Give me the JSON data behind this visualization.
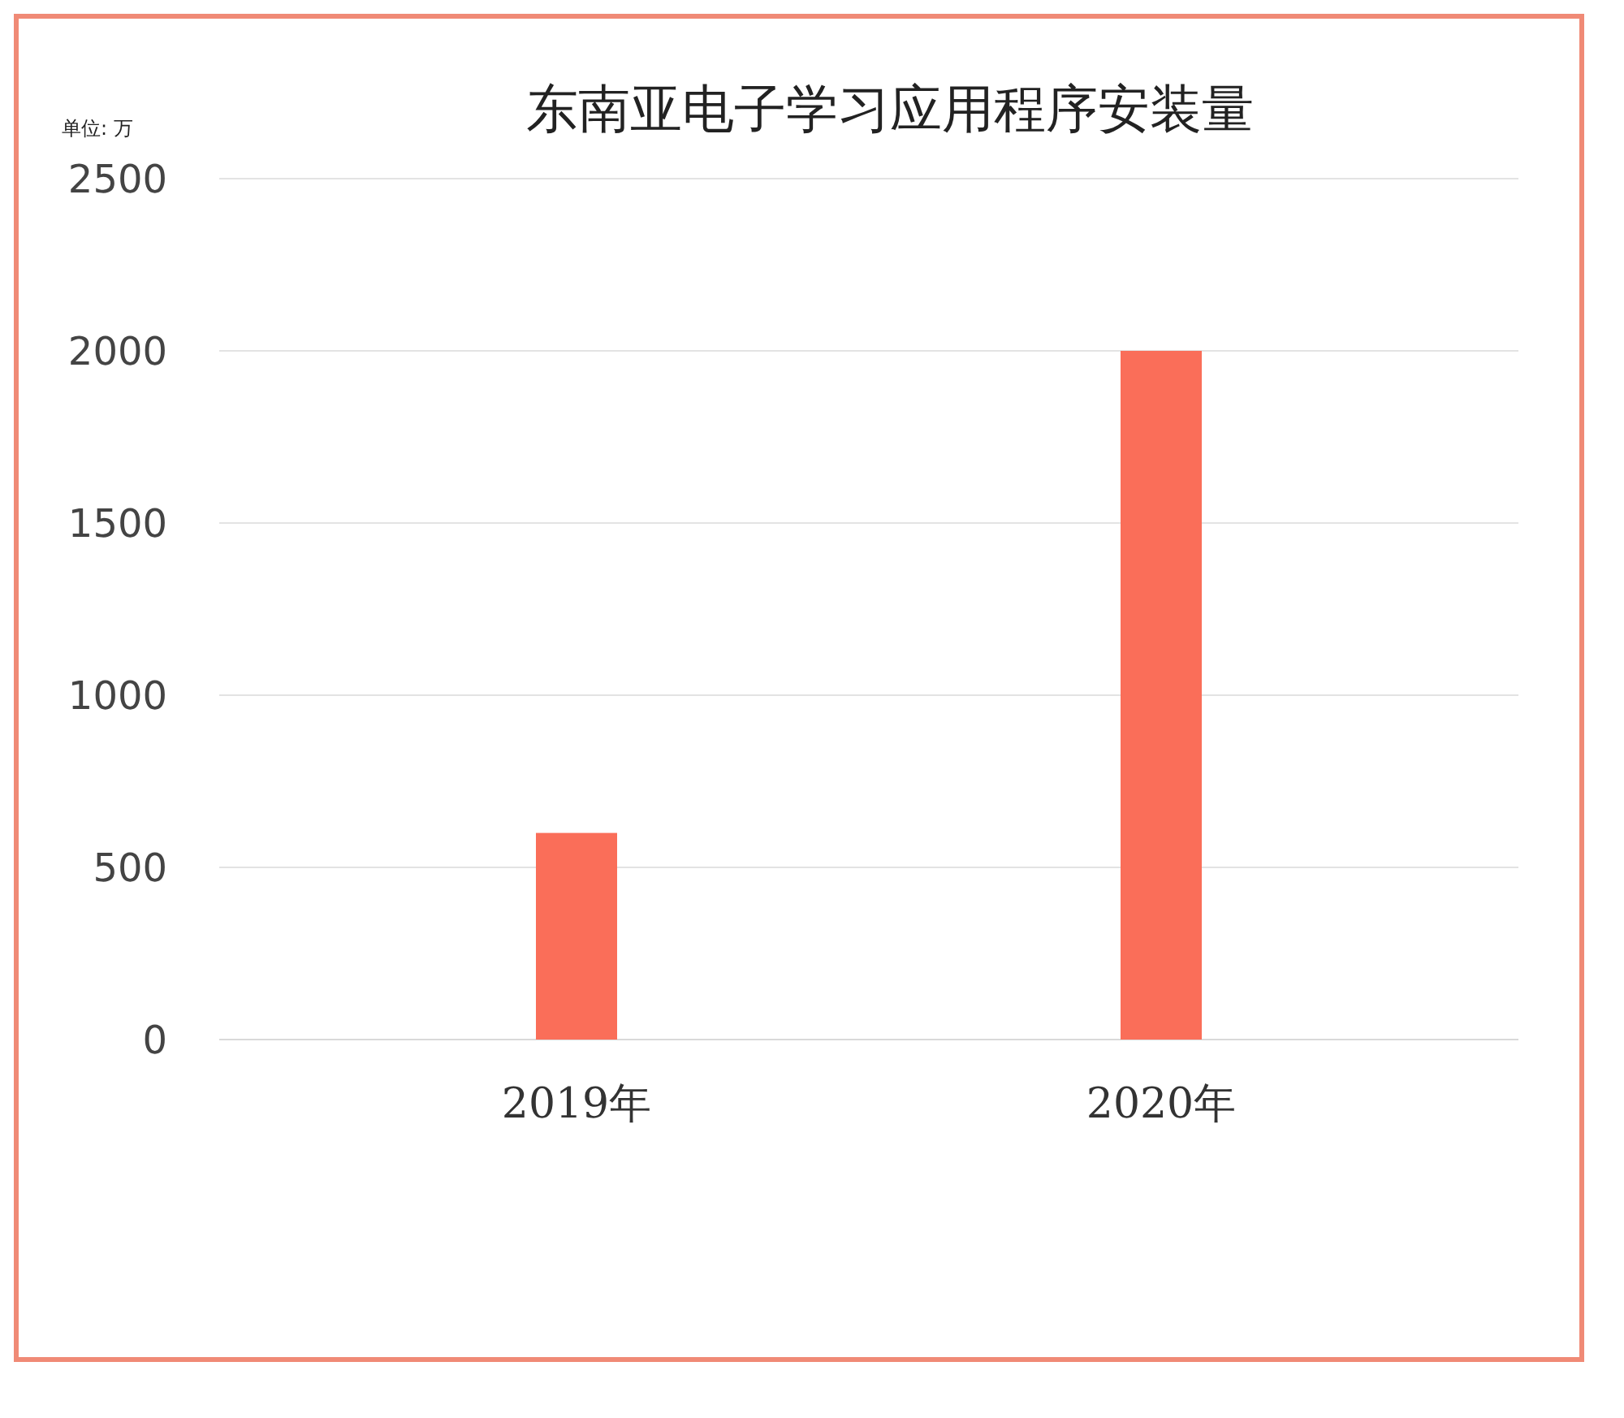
{
  "chart_data": {
    "type": "bar",
    "title": "东南亚电子学习应用程序安装量",
    "ylabel": "单位: 万",
    "categories": [
      "2019年",
      "2020年"
    ],
    "values": [
      600,
      2000
    ],
    "color": "#fa6e59",
    "ylim": [
      0,
      2500
    ],
    "yticks": [
      0,
      500,
      1000,
      1500,
      2000,
      2500
    ],
    "grid": "y"
  }
}
